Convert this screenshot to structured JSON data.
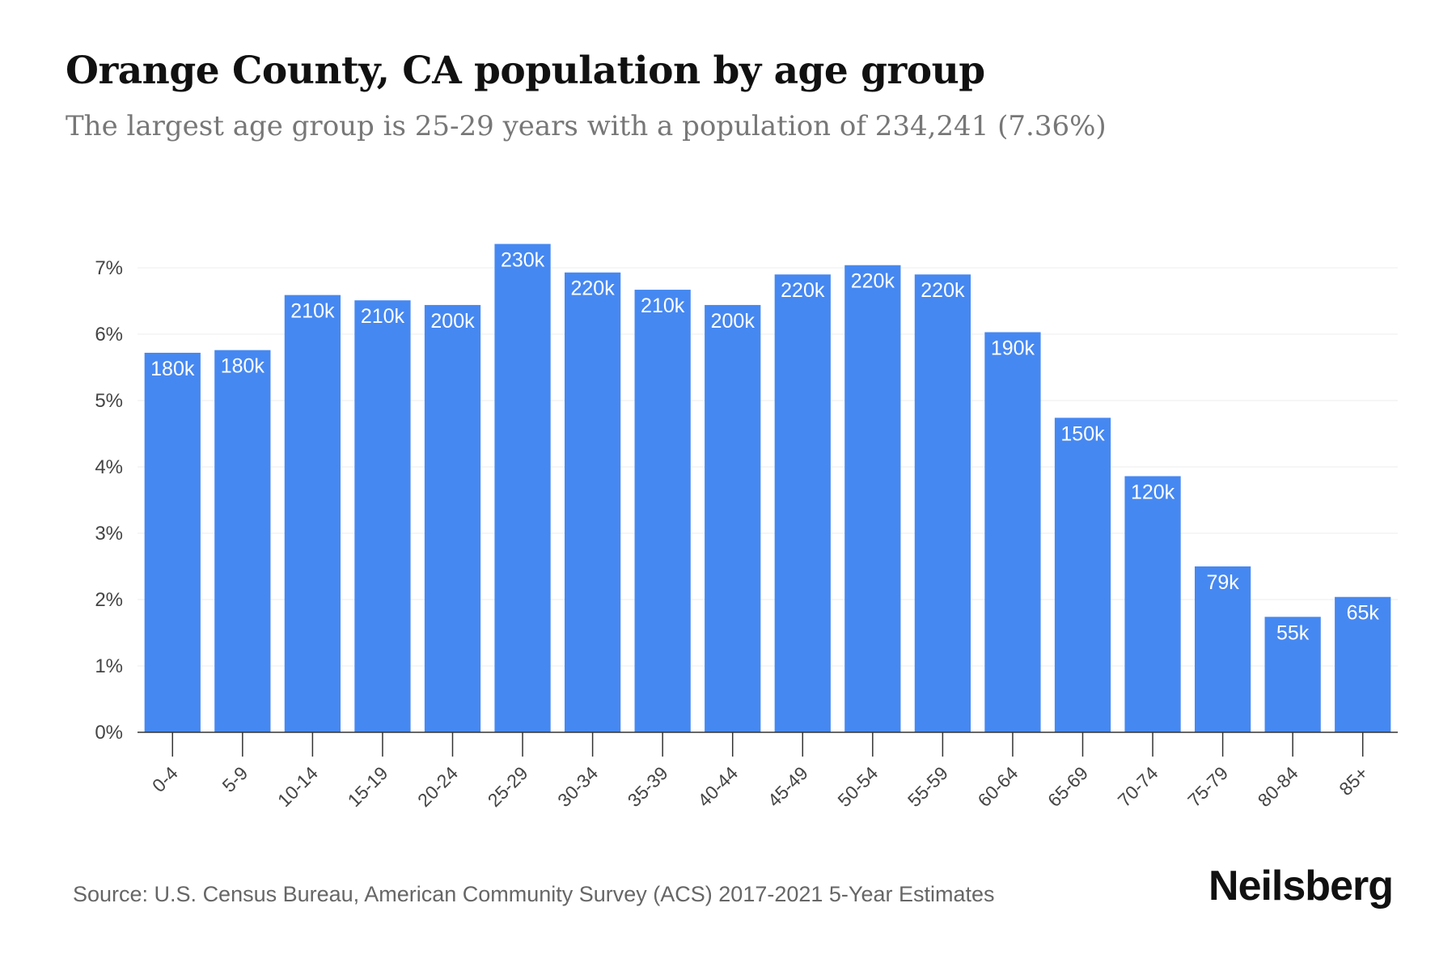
{
  "header": {
    "title": "Orange County, CA population by age group",
    "subtitle": "The largest age group is 25-29 years with a population of 234,241 (7.36%)"
  },
  "footer": {
    "source": "Source: U.S. Census Bureau, American Community Survey (ACS) 2017-2021 5-Year Estimates",
    "brand": "Neilsberg"
  },
  "colors": {
    "bar": "#4688f1",
    "bar_label": "#ffffff",
    "grid": "#ececec",
    "axis": "#333333",
    "tick_text": "#444444"
  },
  "chart_data": {
    "type": "bar",
    "title": "Orange County, CA population by age group",
    "subtitle": "The largest age group is 25-29 years with a population of 234,241 (7.36%)",
    "xlabel": "",
    "ylabel": "",
    "categories": [
      "0-4",
      "5-9",
      "10-14",
      "15-19",
      "20-24",
      "25-29",
      "30-34",
      "35-39",
      "40-44",
      "45-49",
      "50-54",
      "55-59",
      "60-64",
      "65-69",
      "70-74",
      "75-79",
      "80-84",
      "85+"
    ],
    "values": [
      5.72,
      5.76,
      6.59,
      6.51,
      6.44,
      7.36,
      6.93,
      6.67,
      6.44,
      6.9,
      7.04,
      6.9,
      6.03,
      4.74,
      3.86,
      2.5,
      1.74,
      2.04
    ],
    "data_labels": [
      "180k",
      "180k",
      "210k",
      "210k",
      "200k",
      "230k",
      "220k",
      "210k",
      "200k",
      "220k",
      "220k",
      "220k",
      "190k",
      "150k",
      "120k",
      "79k",
      "55k",
      "65k"
    ],
    "y_unit": "%",
    "ylim": [
      0,
      7
    ],
    "yticks": [
      0,
      1,
      2,
      3,
      4,
      5,
      6,
      7
    ],
    "ytick_labels": [
      "0%",
      "1%",
      "2%",
      "3%",
      "4%",
      "5%",
      "6%",
      "7%"
    ],
    "grid": true,
    "legend": "none"
  }
}
